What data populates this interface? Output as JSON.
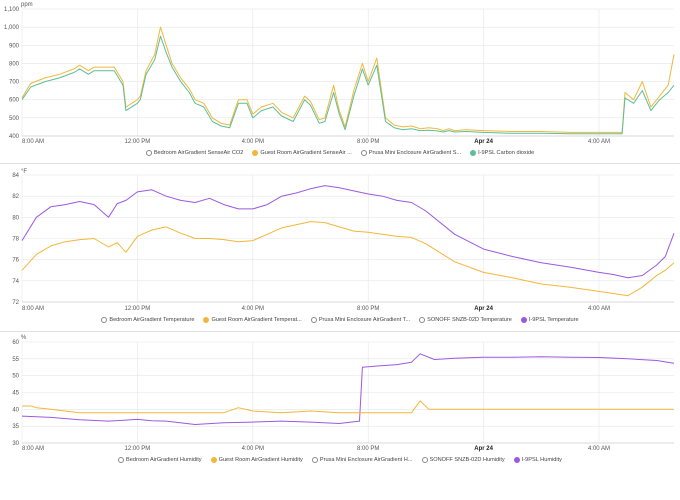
{
  "colors": {
    "grid": "#e6e6e6",
    "axis_text": "#555555",
    "yellow": "#f2b73a",
    "green": "#5cbf96",
    "purple": "#9b59e0",
    "hollow": "#888888"
  },
  "chart_data": [
    {
      "type": "line",
      "unit": "ppm",
      "ylim": [
        400,
        1100
      ],
      "yticks": [
        "400",
        "500",
        "600",
        "700",
        "800",
        "900",
        "1,000",
        "1,100"
      ],
      "ytick_values": [
        400,
        500,
        600,
        700,
        800,
        900,
        1000,
        1100
      ],
      "xticks": [
        "8:00 AM",
        "12:00 PM",
        "4:00 PM",
        "8:00 PM",
        "Apr 24",
        "4:00 AM"
      ],
      "bold_tick": "Apr 24",
      "x_hours": [
        0,
        4,
        8,
        12,
        16,
        20
      ],
      "x_max_hours": 22.6,
      "grid": true,
      "legend": [
        {
          "label": "Bedroom AirGradient SenseAir CO2",
          "color": "hollow"
        },
        {
          "label": "Guest Room AirGradient SenseAir ...",
          "color": "yellow"
        },
        {
          "label": "Prusa Mini Enclosure AirGradient S...",
          "color": "hollow"
        },
        {
          "label": "I-9PSL Carbon dioxide",
          "color": "green"
        }
      ],
      "series": [
        {
          "color": "yellow",
          "x": [
            0,
            0.3,
            0.8,
            1.3,
            1.8,
            2,
            2.3,
            2.5,
            3.2,
            3.5,
            3.6,
            4,
            4.1,
            4.3,
            4.6,
            4.8,
            5,
            5.2,
            5.5,
            5.8,
            6,
            6.3,
            6.6,
            6.9,
            7.2,
            7.5,
            7.8,
            8,
            8.3,
            8.7,
            9,
            9.4,
            9.8,
            10,
            10.3,
            10.5,
            10.8,
            11,
            11.2,
            11.5,
            11.8,
            12,
            12.3,
            12.6,
            12.9,
            13.2,
            13.5,
            13.8,
            14.1,
            14.4,
            14.6,
            14.8,
            15,
            15.4,
            16,
            17,
            18,
            19,
            20,
            20.8,
            20.9,
            21.2,
            21.5,
            21.8,
            22.1,
            22.4,
            22.6
          ],
          "y": [
            610,
            690,
            720,
            740,
            770,
            790,
            760,
            780,
            780,
            700,
            560,
            600,
            620,
            760,
            850,
            1000,
            900,
            800,
            720,
            660,
            600,
            580,
            500,
            470,
            460,
            600,
            600,
            520,
            560,
            580,
            530,
            500,
            620,
            590,
            490,
            500,
            680,
            540,
            450,
            650,
            800,
            700,
            830,
            500,
            460,
            450,
            455,
            440,
            445,
            440,
            430,
            440,
            430,
            435,
            430,
            425,
            425,
            420,
            420,
            420,
            640,
            600,
            700,
            560,
            620,
            680,
            850
          ]
        },
        {
          "color": "green",
          "x": [
            0,
            0.3,
            0.8,
            1.3,
            1.8,
            2,
            2.3,
            2.5,
            3.2,
            3.5,
            3.6,
            4,
            4.1,
            4.3,
            4.6,
            4.8,
            5,
            5.2,
            5.5,
            5.8,
            6,
            6.3,
            6.6,
            6.9,
            7.2,
            7.5,
            7.8,
            8,
            8.3,
            8.7,
            9,
            9.4,
            9.8,
            10,
            10.3,
            10.5,
            10.8,
            11,
            11.2,
            11.5,
            11.8,
            12,
            12.3,
            12.6,
            12.9,
            13.2,
            13.5,
            13.8,
            14.1,
            14.4,
            14.6,
            14.8,
            15,
            15.4,
            16,
            17,
            18,
            19,
            20,
            20.8,
            20.9,
            21.2,
            21.5,
            21.8,
            22.1,
            22.4,
            22.6
          ],
          "y": [
            600,
            670,
            700,
            720,
            750,
            770,
            740,
            760,
            760,
            680,
            540,
            580,
            600,
            740,
            820,
            950,
            860,
            780,
            700,
            640,
            580,
            560,
            480,
            455,
            445,
            580,
            580,
            500,
            540,
            560,
            510,
            480,
            600,
            570,
            470,
            480,
            640,
            520,
            435,
            620,
            770,
            680,
            790,
            480,
            445,
            435,
            440,
            430,
            432,
            428,
            422,
            430,
            422,
            425,
            420,
            415,
            415,
            412,
            412,
            412,
            610,
            580,
            650,
            540,
            600,
            640,
            680
          ]
        }
      ]
    },
    {
      "type": "line",
      "unit": "°F",
      "ylim": [
        72,
        84
      ],
      "yticks": [
        "72",
        "74",
        "76",
        "78",
        "80",
        "82",
        "84"
      ],
      "ytick_values": [
        72,
        74,
        76,
        78,
        80,
        82,
        84
      ],
      "xticks": [
        "8:00 AM",
        "12:00 PM",
        "4:00 PM",
        "8:00 PM",
        "Apr 24",
        "4:00 AM"
      ],
      "bold_tick": "Apr 24",
      "x_hours": [
        0,
        4,
        8,
        12,
        16,
        20
      ],
      "x_max_hours": 22.6,
      "grid": true,
      "legend": [
        {
          "label": "Bedroom AirGradient Temperature",
          "color": "hollow"
        },
        {
          "label": "Guest Room AirGradient Temperat...",
          "color": "yellow"
        },
        {
          "label": "Prusa Mini Enclosure AirGradient T...",
          "color": "hollow"
        },
        {
          "label": "SONOFF SNZB-02D Temperature",
          "color": "hollow"
        },
        {
          "label": "I-9PSL Temperature",
          "color": "purple"
        }
      ],
      "series": [
        {
          "color": "purple",
          "x": [
            0,
            0.5,
            1,
            1.5,
            2,
            2.5,
            3,
            3.3,
            3.6,
            4,
            4.5,
            5,
            5.5,
            6,
            6.5,
            7,
            7.5,
            8,
            8.5,
            9,
            9.5,
            10,
            10.5,
            11,
            11.5,
            12,
            12.5,
            13,
            13.5,
            14,
            15,
            16,
            17,
            18,
            19,
            20,
            20.5,
            21,
            21.5,
            22,
            22.3,
            22.6
          ],
          "y": [
            77.8,
            80,
            81,
            81.2,
            81.5,
            81.2,
            80,
            81.3,
            81.6,
            82.4,
            82.6,
            82,
            81.6,
            81.4,
            81.8,
            81.2,
            80.8,
            80.8,
            81.2,
            82,
            82.3,
            82.7,
            83,
            82.8,
            82.5,
            82.2,
            82,
            81.6,
            81.4,
            80.6,
            78.4,
            77,
            76.3,
            75.7,
            75.3,
            74.8,
            74.6,
            74.3,
            74.5,
            75.5,
            76.3,
            78.5
          ]
        },
        {
          "color": "yellow",
          "x": [
            0,
            0.5,
            1,
            1.5,
            2,
            2.5,
            3,
            3.3,
            3.6,
            4,
            4.5,
            5,
            5.5,
            6,
            6.5,
            7,
            7.5,
            8,
            8.5,
            9,
            9.5,
            10,
            10.5,
            11,
            11.5,
            12,
            12.5,
            13,
            13.5,
            14,
            15,
            16,
            17,
            18,
            19,
            20,
            20.5,
            21,
            21.5,
            22,
            22.3,
            22.6
          ],
          "y": [
            75,
            76.5,
            77.3,
            77.7,
            77.9,
            78,
            77.2,
            77.6,
            76.7,
            78.2,
            78.8,
            79.1,
            78.5,
            78,
            78,
            77.9,
            77.7,
            77.8,
            78.4,
            79,
            79.3,
            79.6,
            79.5,
            79.1,
            78.7,
            78.6,
            78.4,
            78.2,
            78.1,
            77.5,
            75.8,
            74.8,
            74.3,
            73.7,
            73.4,
            73,
            72.8,
            72.6,
            73.4,
            74.5,
            75,
            75.7
          ]
        }
      ]
    },
    {
      "type": "line",
      "unit": "%",
      "ylim": [
        30,
        60
      ],
      "yticks": [
        "30",
        "35",
        "40",
        "45",
        "50",
        "55",
        "60"
      ],
      "ytick_values": [
        30,
        35,
        40,
        45,
        50,
        55,
        60
      ],
      "xticks": [
        "8:00 AM",
        "12:00 PM",
        "4:00 PM",
        "8:00 PM",
        "Apr 24",
        "4:00 AM"
      ],
      "bold_tick": "Apr 24",
      "x_hours": [
        0,
        4,
        8,
        12,
        16,
        20
      ],
      "x_max_hours": 22.6,
      "grid": true,
      "legend": [
        {
          "label": "Bedroom AirGradient Humidity",
          "color": "hollow"
        },
        {
          "label": "Guest Room AirGradient Humidity",
          "color": "yellow"
        },
        {
          "label": "Prusa Mini Enclosure AirGradient H...",
          "color": "hollow"
        },
        {
          "label": "SONOFF SNZB-02D Humidity",
          "color": "hollow"
        },
        {
          "label": "I-9PSL Humidity",
          "color": "purple"
        }
      ],
      "series": [
        {
          "color": "purple",
          "x": [
            0,
            1,
            2,
            3,
            4,
            4.5,
            5,
            6,
            7,
            8,
            9,
            10,
            11,
            11.7,
            11.8,
            12.5,
            13,
            13.5,
            13.8,
            14.3,
            15,
            16,
            17,
            18,
            19,
            20,
            21,
            22,
            22.6
          ],
          "y": [
            38,
            37.6,
            36.9,
            36.5,
            37,
            36.6,
            36.5,
            35.5,
            36,
            36.2,
            36.5,
            36.2,
            35.8,
            36.5,
            52.5,
            53,
            53.3,
            54,
            56.5,
            54.8,
            55.2,
            55.5,
            55.5,
            55.6,
            55.5,
            55.4,
            55,
            54.5,
            53.7
          ]
        },
        {
          "color": "yellow",
          "x": [
            0,
            0.3,
            0.5,
            1,
            1.5,
            2,
            3,
            4,
            5,
            6,
            7,
            7.5,
            8,
            9,
            10,
            11,
            11.7,
            12,
            12.5,
            13,
            13.5,
            13.8,
            14.1,
            14.5,
            15,
            16,
            17,
            18,
            19,
            20,
            21,
            22,
            22.6
          ],
          "y": [
            41,
            41,
            40.5,
            40,
            39.5,
            39,
            39,
            39,
            39,
            39,
            39,
            40.5,
            39.5,
            39,
            39.5,
            39,
            39,
            39,
            39,
            39,
            39,
            42.5,
            40,
            40,
            40,
            40,
            40,
            40,
            40,
            40,
            40,
            40,
            40
          ]
        }
      ]
    }
  ]
}
